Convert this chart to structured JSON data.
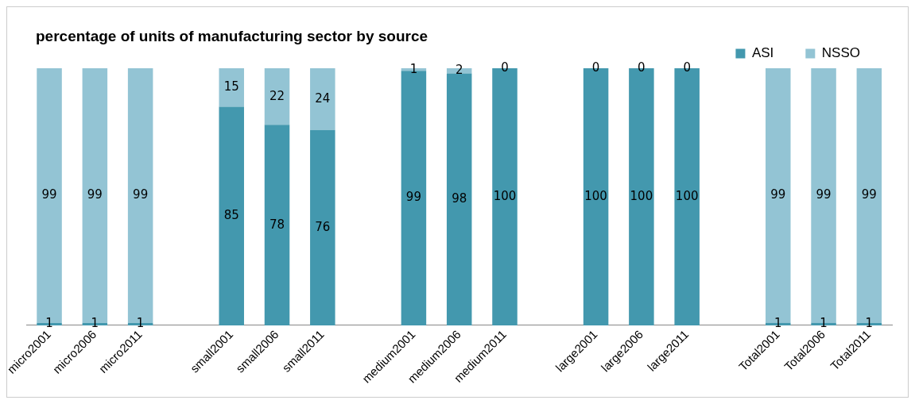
{
  "chart_data": {
    "type": "bar",
    "title": "percentage  of units of manufacturing sector by source",
    "categories": [
      "micro2001",
      "micro2006",
      "micro2011",
      null,
      "small2001",
      "small2006",
      "small2011",
      null,
      "medium2001",
      "medium2006",
      "medium2011",
      null,
      "large2001",
      "large2006",
      "large2011",
      null,
      "Total2001",
      "Total2006",
      "Total2011"
    ],
    "series": [
      {
        "name": "ASI",
        "color": "#4398ae",
        "values": [
          1,
          1,
          1,
          null,
          85,
          78,
          76,
          null,
          99,
          98,
          100,
          null,
          100,
          100,
          100,
          null,
          1,
          1,
          1
        ]
      },
      {
        "name": "NSSO",
        "color": "#93c4d4",
        "values": [
          99,
          99,
          99,
          null,
          15,
          22,
          24,
          null,
          1,
          2,
          0,
          null,
          0,
          0,
          0,
          null,
          99,
          99,
          99
        ]
      }
    ],
    "stacked": true,
    "data_labels": true,
    "legend": "top right",
    "grid": false
  }
}
